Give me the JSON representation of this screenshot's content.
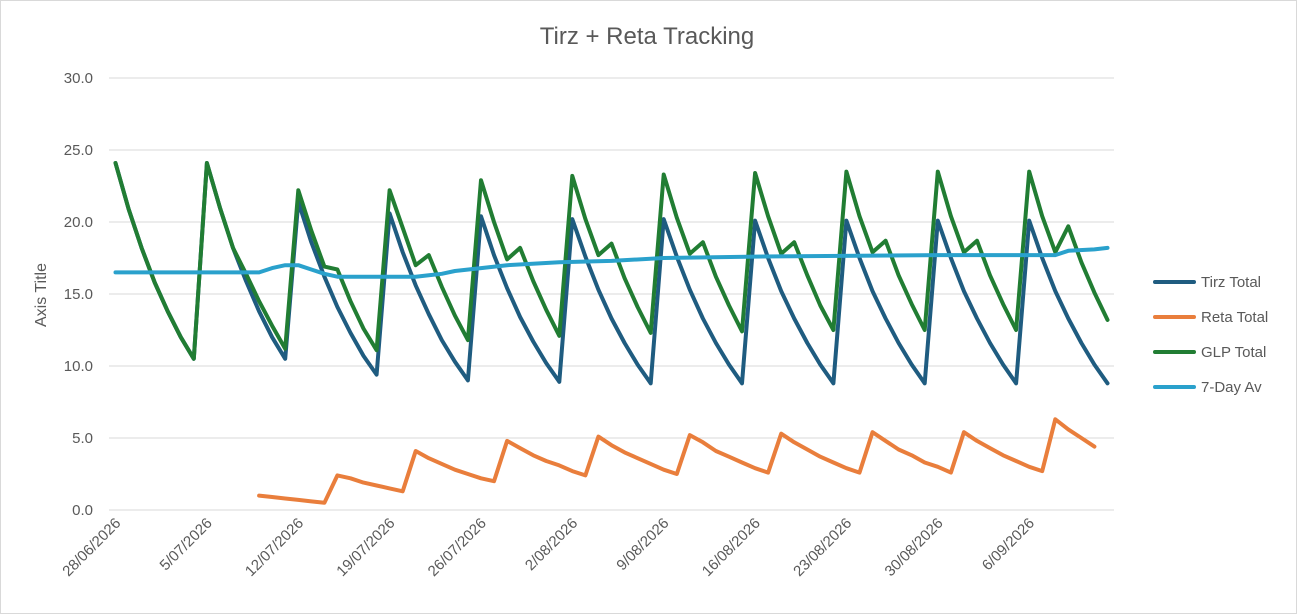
{
  "chart_data": {
    "type": "line",
    "title": "Tirz + Reta Tracking",
    "xlabel": "",
    "ylabel": "Axis Title",
    "ylim": [
      0,
      30
    ],
    "y_ticks": [
      "0.0",
      "5.0",
      "10.0",
      "15.0",
      "20.0",
      "25.0",
      "30.0"
    ],
    "x_start_date": "2026-06-28",
    "x_end_date": "2026-09-13",
    "x_ticks": [
      "28/06/2026",
      "5/07/2026",
      "12/07/2026",
      "19/07/2026",
      "26/07/2026",
      "2/08/2026",
      "9/08/2026",
      "16/08/2026",
      "23/08/2026",
      "30/08/2026",
      "6/09/2026"
    ],
    "grid": true,
    "legend_position": "right",
    "series": [
      {
        "name": "Tirz Total",
        "color": "#1f5c80",
        "points": [
          [
            "2026-06-28",
            24.1
          ],
          [
            "2026-06-29",
            20.9
          ],
          [
            "2026-06-30",
            18.2
          ],
          [
            "2026-07-01",
            15.8
          ],
          [
            "2026-07-02",
            13.8
          ],
          [
            "2026-07-03",
            12.0
          ],
          [
            "2026-07-04",
            10.5
          ],
          [
            "2026-07-05",
            24.1
          ],
          [
            "2026-07-06",
            21.0
          ],
          [
            "2026-07-07",
            18.2
          ],
          [
            "2026-07-08",
            15.9
          ],
          [
            "2026-07-09",
            13.8
          ],
          [
            "2026-07-10",
            12.0
          ],
          [
            "2026-07-11",
            10.5
          ],
          [
            "2026-07-12",
            21.4
          ],
          [
            "2026-07-13",
            18.6
          ],
          [
            "2026-07-14",
            16.2
          ],
          [
            "2026-07-15",
            14.1
          ],
          [
            "2026-07-16",
            12.3
          ],
          [
            "2026-07-17",
            10.7
          ],
          [
            "2026-07-18",
            9.4
          ],
          [
            "2026-07-19",
            20.6
          ],
          [
            "2026-07-20",
            17.9
          ],
          [
            "2026-07-21",
            15.6
          ],
          [
            "2026-07-22",
            13.6
          ],
          [
            "2026-07-23",
            11.8
          ],
          [
            "2026-07-24",
            10.3
          ],
          [
            "2026-07-25",
            9.0
          ],
          [
            "2026-07-26",
            20.4
          ],
          [
            "2026-07-27",
            17.7
          ],
          [
            "2026-07-28",
            15.4
          ],
          [
            "2026-07-29",
            13.4
          ],
          [
            "2026-07-30",
            11.7
          ],
          [
            "2026-07-31",
            10.2
          ],
          [
            "2026-08-01",
            8.9
          ],
          [
            "2026-08-02",
            20.2
          ],
          [
            "2026-08-03",
            17.6
          ],
          [
            "2026-08-04",
            15.3
          ],
          [
            "2026-08-05",
            13.3
          ],
          [
            "2026-08-06",
            11.6
          ],
          [
            "2026-08-07",
            10.1
          ],
          [
            "2026-08-08",
            8.8
          ],
          [
            "2026-08-09",
            20.2
          ],
          [
            "2026-08-10",
            17.6
          ],
          [
            "2026-08-11",
            15.3
          ],
          [
            "2026-08-12",
            13.3
          ],
          [
            "2026-08-13",
            11.6
          ],
          [
            "2026-08-14",
            10.1
          ],
          [
            "2026-08-15",
            8.8
          ],
          [
            "2026-08-16",
            20.1
          ],
          [
            "2026-08-17",
            17.5
          ],
          [
            "2026-08-18",
            15.2
          ],
          [
            "2026-08-19",
            13.3
          ],
          [
            "2026-08-20",
            11.6
          ],
          [
            "2026-08-21",
            10.1
          ],
          [
            "2026-08-22",
            8.8
          ],
          [
            "2026-08-23",
            20.1
          ],
          [
            "2026-08-24",
            17.5
          ],
          [
            "2026-08-25",
            15.2
          ],
          [
            "2026-08-26",
            13.3
          ],
          [
            "2026-08-27",
            11.6
          ],
          [
            "2026-08-28",
            10.1
          ],
          [
            "2026-08-29",
            8.8
          ],
          [
            "2026-08-30",
            20.1
          ],
          [
            "2026-08-31",
            17.5
          ],
          [
            "2026-09-01",
            15.2
          ],
          [
            "2026-09-02",
            13.3
          ],
          [
            "2026-09-03",
            11.6
          ],
          [
            "2026-09-04",
            10.1
          ],
          [
            "2026-09-05",
            8.8
          ],
          [
            "2026-09-06",
            20.1
          ],
          [
            "2026-09-07",
            17.5
          ],
          [
            "2026-09-08",
            15.2
          ],
          [
            "2026-09-09",
            13.3
          ],
          [
            "2026-09-10",
            11.6
          ],
          [
            "2026-09-11",
            10.1
          ],
          [
            "2026-09-12",
            8.8
          ]
        ]
      },
      {
        "name": "Reta Total",
        "color": "#e97e3c",
        "points": [
          [
            "2026-07-09",
            1.0
          ],
          [
            "2026-07-10",
            0.9
          ],
          [
            "2026-07-11",
            0.8
          ],
          [
            "2026-07-12",
            0.7
          ],
          [
            "2026-07-13",
            0.6
          ],
          [
            "2026-07-14",
            0.5
          ],
          [
            "2026-07-15",
            2.4
          ],
          [
            "2026-07-16",
            2.2
          ],
          [
            "2026-07-17",
            1.9
          ],
          [
            "2026-07-18",
            1.7
          ],
          [
            "2026-07-19",
            1.5
          ],
          [
            "2026-07-20",
            1.3
          ],
          [
            "2026-07-21",
            4.1
          ],
          [
            "2026-07-22",
            3.6
          ],
          [
            "2026-07-23",
            3.2
          ],
          [
            "2026-07-24",
            2.8
          ],
          [
            "2026-07-25",
            2.5
          ],
          [
            "2026-07-26",
            2.2
          ],
          [
            "2026-07-27",
            2.0
          ],
          [
            "2026-07-28",
            4.8
          ],
          [
            "2026-07-29",
            4.3
          ],
          [
            "2026-07-30",
            3.8
          ],
          [
            "2026-07-31",
            3.4
          ],
          [
            "2026-08-01",
            3.1
          ],
          [
            "2026-08-02",
            2.7
          ],
          [
            "2026-08-03",
            2.4
          ],
          [
            "2026-08-04",
            5.1
          ],
          [
            "2026-08-05",
            4.5
          ],
          [
            "2026-08-06",
            4.0
          ],
          [
            "2026-08-07",
            3.6
          ],
          [
            "2026-08-08",
            3.2
          ],
          [
            "2026-08-09",
            2.8
          ],
          [
            "2026-08-10",
            2.5
          ],
          [
            "2026-08-11",
            5.2
          ],
          [
            "2026-08-12",
            4.7
          ],
          [
            "2026-08-13",
            4.1
          ],
          [
            "2026-08-14",
            3.7
          ],
          [
            "2026-08-15",
            3.3
          ],
          [
            "2026-08-16",
            2.9
          ],
          [
            "2026-08-17",
            2.6
          ],
          [
            "2026-08-18",
            5.3
          ],
          [
            "2026-08-19",
            4.7
          ],
          [
            "2026-08-20",
            4.2
          ],
          [
            "2026-08-21",
            3.7
          ],
          [
            "2026-08-22",
            3.3
          ],
          [
            "2026-08-23",
            2.9
          ],
          [
            "2026-08-24",
            2.6
          ],
          [
            "2026-08-25",
            5.4
          ],
          [
            "2026-08-26",
            4.8
          ],
          [
            "2026-08-27",
            4.2
          ],
          [
            "2026-08-28",
            3.8
          ],
          [
            "2026-08-29",
            3.3
          ],
          [
            "2026-08-30",
            3.0
          ],
          [
            "2026-08-31",
            2.6
          ],
          [
            "2026-09-01",
            5.4
          ],
          [
            "2026-09-02",
            4.8
          ],
          [
            "2026-09-03",
            4.3
          ],
          [
            "2026-09-04",
            3.8
          ],
          [
            "2026-09-05",
            3.4
          ],
          [
            "2026-09-06",
            3.0
          ],
          [
            "2026-09-07",
            2.7
          ],
          [
            "2026-09-08",
            6.3
          ],
          [
            "2026-09-09",
            5.6
          ],
          [
            "2026-09-10",
            5.0
          ],
          [
            "2026-09-11",
            4.4
          ]
        ]
      },
      {
        "name": "GLP Total",
        "color": "#217d33",
        "points": [
          [
            "2026-06-28",
            24.1
          ],
          [
            "2026-06-29",
            20.9
          ],
          [
            "2026-06-30",
            18.2
          ],
          [
            "2026-07-01",
            15.8
          ],
          [
            "2026-07-02",
            13.8
          ],
          [
            "2026-07-03",
            12.0
          ],
          [
            "2026-07-04",
            10.5
          ],
          [
            "2026-07-05",
            24.1
          ],
          [
            "2026-07-06",
            21.0
          ],
          [
            "2026-07-07",
            18.2
          ],
          [
            "2026-07-08",
            16.4
          ],
          [
            "2026-07-09",
            14.5
          ],
          [
            "2026-07-10",
            12.8
          ],
          [
            "2026-07-11",
            11.2
          ],
          [
            "2026-07-12",
            22.2
          ],
          [
            "2026-07-13",
            19.4
          ],
          [
            "2026-07-14",
            16.9
          ],
          [
            "2026-07-15",
            16.7
          ],
          [
            "2026-07-16",
            14.5
          ],
          [
            "2026-07-17",
            12.6
          ],
          [
            "2026-07-18",
            11.1
          ],
          [
            "2026-07-19",
            22.2
          ],
          [
            "2026-07-20",
            19.6
          ],
          [
            "2026-07-21",
            17.0
          ],
          [
            "2026-07-22",
            17.7
          ],
          [
            "2026-07-23",
            15.5
          ],
          [
            "2026-07-24",
            13.5
          ],
          [
            "2026-07-25",
            11.8
          ],
          [
            "2026-07-26",
            22.9
          ],
          [
            "2026-07-27",
            20.0
          ],
          [
            "2026-07-28",
            17.4
          ],
          [
            "2026-07-29",
            18.2
          ],
          [
            "2026-07-30",
            15.9
          ],
          [
            "2026-07-31",
            13.9
          ],
          [
            "2026-08-01",
            12.1
          ],
          [
            "2026-08-02",
            23.2
          ],
          [
            "2026-08-03",
            20.2
          ],
          [
            "2026-08-04",
            17.7
          ],
          [
            "2026-08-05",
            18.5
          ],
          [
            "2026-08-06",
            16.1
          ],
          [
            "2026-08-07",
            14.1
          ],
          [
            "2026-08-08",
            12.3
          ],
          [
            "2026-08-09",
            23.3
          ],
          [
            "2026-08-10",
            20.3
          ],
          [
            "2026-08-11",
            17.8
          ],
          [
            "2026-08-12",
            18.6
          ],
          [
            "2026-08-13",
            16.2
          ],
          [
            "2026-08-14",
            14.2
          ],
          [
            "2026-08-15",
            12.4
          ],
          [
            "2026-08-16",
            23.4
          ],
          [
            "2026-08-17",
            20.4
          ],
          [
            "2026-08-18",
            17.8
          ],
          [
            "2026-08-19",
            18.6
          ],
          [
            "2026-08-20",
            16.3
          ],
          [
            "2026-08-21",
            14.2
          ],
          [
            "2026-08-22",
            12.5
          ],
          [
            "2026-08-23",
            23.5
          ],
          [
            "2026-08-24",
            20.4
          ],
          [
            "2026-08-25",
            17.9
          ],
          [
            "2026-08-26",
            18.7
          ],
          [
            "2026-08-27",
            16.3
          ],
          [
            "2026-08-28",
            14.3
          ],
          [
            "2026-08-29",
            12.5
          ],
          [
            "2026-08-30",
            23.5
          ],
          [
            "2026-08-31",
            20.4
          ],
          [
            "2026-09-01",
            17.9
          ],
          [
            "2026-09-02",
            18.7
          ],
          [
            "2026-09-03",
            16.3
          ],
          [
            "2026-09-04",
            14.3
          ],
          [
            "2026-09-05",
            12.5
          ],
          [
            "2026-09-06",
            23.5
          ],
          [
            "2026-09-07",
            20.4
          ],
          [
            "2026-09-08",
            17.9
          ],
          [
            "2026-09-09",
            19.7
          ],
          [
            "2026-09-10",
            17.2
          ],
          [
            "2026-09-11",
            15.1
          ],
          [
            "2026-09-12",
            13.2
          ]
        ]
      },
      {
        "name": "7-Day Av",
        "color": "#2aa1cc",
        "points": [
          [
            "2026-06-28",
            16.5
          ],
          [
            "2026-07-09",
            16.5
          ],
          [
            "2026-07-10",
            16.8
          ],
          [
            "2026-07-11",
            17.0
          ],
          [
            "2026-07-12",
            17.0
          ],
          [
            "2026-07-13",
            16.7
          ],
          [
            "2026-07-14",
            16.4
          ],
          [
            "2026-07-15",
            16.2
          ],
          [
            "2026-07-16",
            16.2
          ],
          [
            "2026-07-21",
            16.2
          ],
          [
            "2026-07-22",
            16.3
          ],
          [
            "2026-07-23",
            16.4
          ],
          [
            "2026-07-24",
            16.6
          ],
          [
            "2026-07-26",
            16.8
          ],
          [
            "2026-07-28",
            17.0
          ],
          [
            "2026-08-01",
            17.2
          ],
          [
            "2026-08-05",
            17.3
          ],
          [
            "2026-08-09",
            17.5
          ],
          [
            "2026-08-16",
            17.6
          ],
          [
            "2026-08-30",
            17.7
          ],
          [
            "2026-09-08",
            17.7
          ],
          [
            "2026-09-09",
            18.0
          ],
          [
            "2026-09-11",
            18.1
          ],
          [
            "2026-09-12",
            18.2
          ]
        ]
      }
    ]
  }
}
